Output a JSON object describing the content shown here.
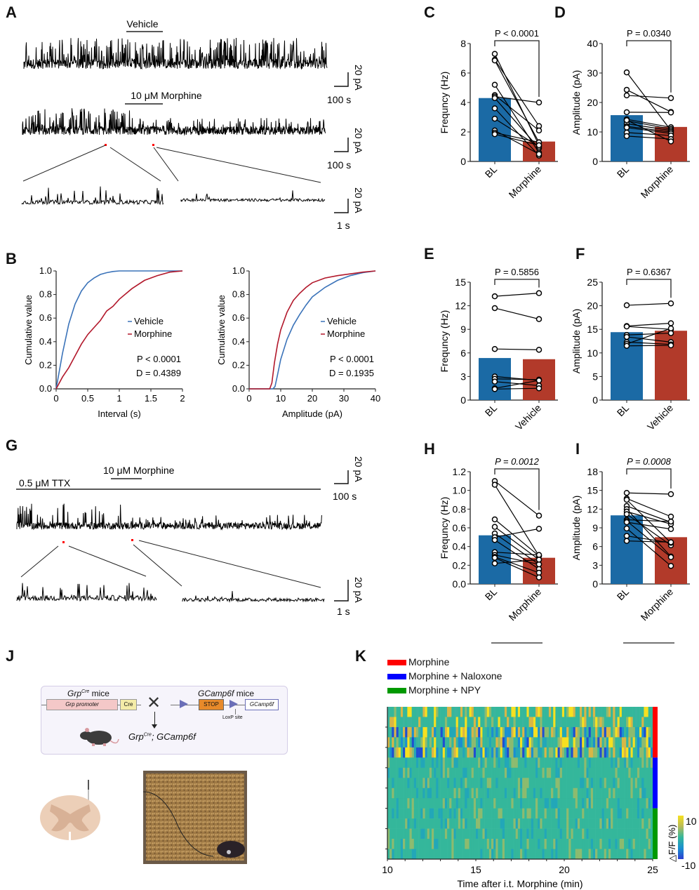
{
  "panels": {
    "A": {
      "label": "A",
      "trace1_label": "Vehicle",
      "trace2_label": "10 μM Morphine",
      "scale1_y": "20 pA",
      "scale1_x": "100 s",
      "scale2_y": "20 pA",
      "scale2_x": "100 s",
      "scale3_y": "20 pA",
      "scale3_x": "1 s"
    },
    "B": {
      "label": "B"
    },
    "C": {
      "label": "C"
    },
    "D": {
      "label": "D"
    },
    "E": {
      "label": "E"
    },
    "F": {
      "label": "F"
    },
    "G": {
      "label": "G",
      "ttx_label": "0.5 μM TTX",
      "drug_label": "10 μM Morphine",
      "scale1_y": "20 pA",
      "scale1_x": "100 s",
      "scale2_y": "20 pA",
      "scale2_x": "1 s"
    },
    "H": {
      "label": "H",
      "group_label": "0.5 μM TTX"
    },
    "I": {
      "label": "I",
      "group_label": "0.5 μM TTX"
    },
    "J": {
      "label": "J",
      "grp_mice": "Grp",
      "grp_sup": "Cre",
      "grp_mice_suffix": " mice",
      "gcamp_mice": "GCamp6f",
      "gcamp_suffix": " mice",
      "promoter_box": "Grp promoter",
      "cre_box": "Cre",
      "stop_box": "STOP",
      "gcamp_box": "GCamp6f",
      "loxp": "LoxP site",
      "cross": "✕",
      "result_a": "Grp",
      "result_sup": "Cre",
      "result_b": "; GCamp6f"
    },
    "K": {
      "label": "K"
    }
  },
  "colors": {
    "blue_bar": "#1b6aa5",
    "red_bar": "#b23a2a",
    "vehicle_line": "#3b73b9",
    "morphine_line": "#b2182b",
    "legend_red": "#ff0000",
    "legend_blue": "#0000ff",
    "legend_green": "#009900"
  },
  "chart_data": [
    {
      "id": "B1",
      "type": "line",
      "xlabel": "Interval (s)",
      "ylabel": "Cumulative value",
      "xlim": [
        0,
        2
      ],
      "ylim": [
        0,
        1.0
      ],
      "xticks": [
        "0",
        "0.5",
        "1",
        "1.5",
        "2"
      ],
      "yticks": [
        "0.0",
        "0.2",
        "0.4",
        "0.6",
        "0.8",
        "1.0"
      ],
      "legend": [
        "Vehicle",
        "Morphine"
      ],
      "legend_position": "center-right",
      "annotations": [
        "P < 0.0001",
        "D = 0.4389"
      ],
      "series": [
        {
          "name": "Vehicle",
          "x": [
            0,
            0.1,
            0.2,
            0.3,
            0.4,
            0.5,
            0.6,
            0.7,
            0.8,
            0.9,
            1.0,
            1.2,
            1.5,
            2.0
          ],
          "y": [
            0,
            0.3,
            0.55,
            0.72,
            0.83,
            0.9,
            0.94,
            0.97,
            0.985,
            0.995,
            1.0,
            1.0,
            1.0,
            1.0
          ]
        },
        {
          "name": "Morphine",
          "x": [
            0,
            0.1,
            0.2,
            0.3,
            0.4,
            0.5,
            0.6,
            0.7,
            0.8,
            0.9,
            1.0,
            1.2,
            1.4,
            1.6,
            1.8,
            2.0
          ],
          "y": [
            0,
            0.1,
            0.18,
            0.28,
            0.38,
            0.46,
            0.52,
            0.58,
            0.66,
            0.7,
            0.76,
            0.85,
            0.92,
            0.96,
            0.99,
            1.0
          ]
        }
      ]
    },
    {
      "id": "B2",
      "type": "line",
      "xlabel": "Amplitude (pA)",
      "ylabel": "Cumulative value",
      "xlim": [
        0,
        40
      ],
      "ylim": [
        0,
        1.0
      ],
      "xticks": [
        "0",
        "10",
        "20",
        "30",
        "40"
      ],
      "yticks": [
        "0.0",
        "0.2",
        "0.4",
        "0.6",
        "0.8",
        "1.0"
      ],
      "legend": [
        "Vehicle",
        "Morphine"
      ],
      "legend_position": "center-right",
      "annotations": [
        "P < 0.0001",
        "D = 0.1935"
      ],
      "series": [
        {
          "name": "Vehicle",
          "x": [
            0,
            7.5,
            8.2,
            9,
            10,
            12,
            14,
            16,
            18,
            20,
            24,
            28,
            32,
            36,
            40
          ],
          "y": [
            0,
            0,
            0.02,
            0.12,
            0.25,
            0.42,
            0.54,
            0.63,
            0.71,
            0.78,
            0.86,
            0.92,
            0.96,
            0.985,
            1.0
          ]
        },
        {
          "name": "Morphine",
          "x": [
            0,
            6.5,
            7.2,
            8,
            9,
            10,
            12,
            14,
            16,
            18,
            20,
            24,
            28,
            32,
            36,
            40
          ],
          "y": [
            0,
            0,
            0.05,
            0.22,
            0.38,
            0.5,
            0.65,
            0.75,
            0.81,
            0.86,
            0.9,
            0.94,
            0.96,
            0.975,
            0.99,
            1.0
          ]
        }
      ]
    },
    {
      "id": "C",
      "type": "bar",
      "categories": [
        "BL",
        "Morphine"
      ],
      "ylabel": "Frequncy (Hz)",
      "ylim": [
        0,
        8
      ],
      "yticks": [
        "0",
        "2",
        "4",
        "6",
        "8"
      ],
      "bar_values": [
        4.3,
        1.35
      ],
      "pvalue": "P < 0.0001",
      "paired": [
        [
          7.3,
          1.1
        ],
        [
          6.9,
          2.4
        ],
        [
          6.85,
          1.3
        ],
        [
          5.2,
          0.6
        ],
        [
          4.5,
          2.1
        ],
        [
          4.4,
          4.0
        ],
        [
          4.3,
          0.9
        ],
        [
          3.6,
          0.4
        ],
        [
          2.9,
          1.0
        ],
        [
          2.1,
          0.5
        ],
        [
          1.95,
          1.3
        ],
        [
          1.85,
          1.1
        ]
      ]
    },
    {
      "id": "D",
      "type": "bar",
      "categories": [
        "BL",
        "Morphine"
      ],
      "ylabel": "Amplitude (pA)",
      "ylim": [
        0,
        40
      ],
      "yticks": [
        "0",
        "10",
        "20",
        "30",
        "40"
      ],
      "bar_values": [
        15.7,
        11.7
      ],
      "pvalue": "P = 0.0340",
      "paired": [
        [
          30.2,
          10.5
        ],
        [
          24.3,
          16.8
        ],
        [
          22.4,
          21.5
        ],
        [
          16.7,
          16.6
        ],
        [
          14.3,
          11.6
        ],
        [
          13.8,
          11.0
        ],
        [
          12.8,
          10.5
        ],
        [
          11.9,
          10.0
        ],
        [
          11.5,
          9.5
        ],
        [
          9.8,
          8.8
        ],
        [
          8.6,
          7.6
        ],
        [
          14.0,
          6.8
        ]
      ]
    },
    {
      "id": "E",
      "type": "bar",
      "categories": [
        "BL",
        "Vehicle"
      ],
      "ylabel": "Frequncy (Hz)",
      "ylim": [
        0,
        15
      ],
      "yticks": [
        "0",
        "3",
        "6",
        "9",
        "12",
        "15"
      ],
      "bar_values": [
        5.35,
        5.2
      ],
      "pvalue": "P = 0.5856",
      "paired": [
        [
          13.2,
          13.6
        ],
        [
          11.7,
          10.3
        ],
        [
          6.5,
          6.4
        ],
        [
          3.0,
          2.5
        ],
        [
          2.7,
          2.6
        ],
        [
          2.35,
          1.85
        ],
        [
          1.5,
          2.5
        ],
        [
          1.4,
          1.5
        ]
      ]
    },
    {
      "id": "F",
      "type": "bar",
      "categories": [
        "BL",
        "Vehicle"
      ],
      "ylabel": "Amplitude (pA)",
      "ylim": [
        0,
        25
      ],
      "yticks": [
        "0",
        "5",
        "10",
        "15",
        "20",
        "25"
      ],
      "bar_values": [
        14.4,
        14.7
      ],
      "pvalue": "P = 0.6367",
      "paired": [
        [
          20.1,
          20.5
        ],
        [
          15.7,
          16.3
        ],
        [
          15.6,
          15.0
        ],
        [
          13.8,
          14.2
        ],
        [
          13.4,
          12.3
        ],
        [
          12.3,
          11.8
        ],
        [
          11.9,
          15.2
        ],
        [
          11.5,
          11.6
        ]
      ]
    },
    {
      "id": "H",
      "type": "bar",
      "categories": [
        "BL",
        "Morphine"
      ],
      "ylabel": "Frequncy (Hz)",
      "ylim": [
        0,
        1.2
      ],
      "yticks": [
        "0.0",
        "0.2",
        "0.4",
        "0.6",
        "0.8",
        "1.0",
        "1.2"
      ],
      "bar_values": [
        0.52,
        0.28
      ],
      "pvalue": "P = 0.0012",
      "group_label": "0.5 μM TTX",
      "paired": [
        [
          1.1,
          0.73
        ],
        [
          1.06,
          0.3
        ],
        [
          0.69,
          0.3
        ],
        [
          0.61,
          0.26
        ],
        [
          0.54,
          0.21
        ],
        [
          0.5,
          0.59
        ],
        [
          0.47,
          0.16
        ],
        [
          0.34,
          0.31
        ],
        [
          0.31,
          0.21
        ],
        [
          0.29,
          0.12
        ],
        [
          0.28,
          0.07
        ],
        [
          0.22,
          0.26
        ]
      ]
    },
    {
      "id": "I",
      "type": "bar",
      "categories": [
        "BL",
        "Morphine"
      ],
      "ylabel": "Amplitude (pA)",
      "ylim": [
        0,
        18
      ],
      "yticks": [
        "0",
        "3",
        "6",
        "9",
        "12",
        "15",
        "18"
      ],
      "bar_values": [
        11.0,
        7.5
      ],
      "pvalue": "P = 0.0008",
      "group_label": "0.5 μM TTX",
      "paired": [
        [
          14.6,
          14.4
        ],
        [
          13.7,
          10.8
        ],
        [
          13.5,
          6.6
        ],
        [
          12.5,
          9.9
        ],
        [
          12.0,
          4.4
        ],
        [
          11.6,
          9.6
        ],
        [
          11.2,
          6.2
        ],
        [
          10.3,
          10.0
        ],
        [
          10.1,
          4.3
        ],
        [
          9.9,
          8.8
        ],
        [
          8.9,
          2.9
        ],
        [
          7.7,
          6.6
        ],
        [
          6.9,
          6.7
        ]
      ]
    },
    {
      "id": "K",
      "type": "heatmap",
      "xlabel": "Time after i.t. Morphine (min)",
      "xlim": [
        10,
        25
      ],
      "xticks": [
        "10",
        "15",
        "20",
        "25"
      ],
      "colorbar_label": "△F/F (%)",
      "colorbar_range": [
        -10,
        10
      ],
      "colorbar_ticks": [
        "10",
        "-10"
      ],
      "legend": [
        "Morphine",
        "Morphine + Naloxone",
        "Morphine + NPY"
      ],
      "legend_position": "top-left",
      "groups": [
        {
          "name": "Morphine",
          "rows": 5,
          "activity": "high"
        },
        {
          "name": "Morphine + Naloxone",
          "rows": 5,
          "activity": "low"
        },
        {
          "name": "Morphine + NPY",
          "rows": 5,
          "activity": "low"
        }
      ]
    }
  ]
}
